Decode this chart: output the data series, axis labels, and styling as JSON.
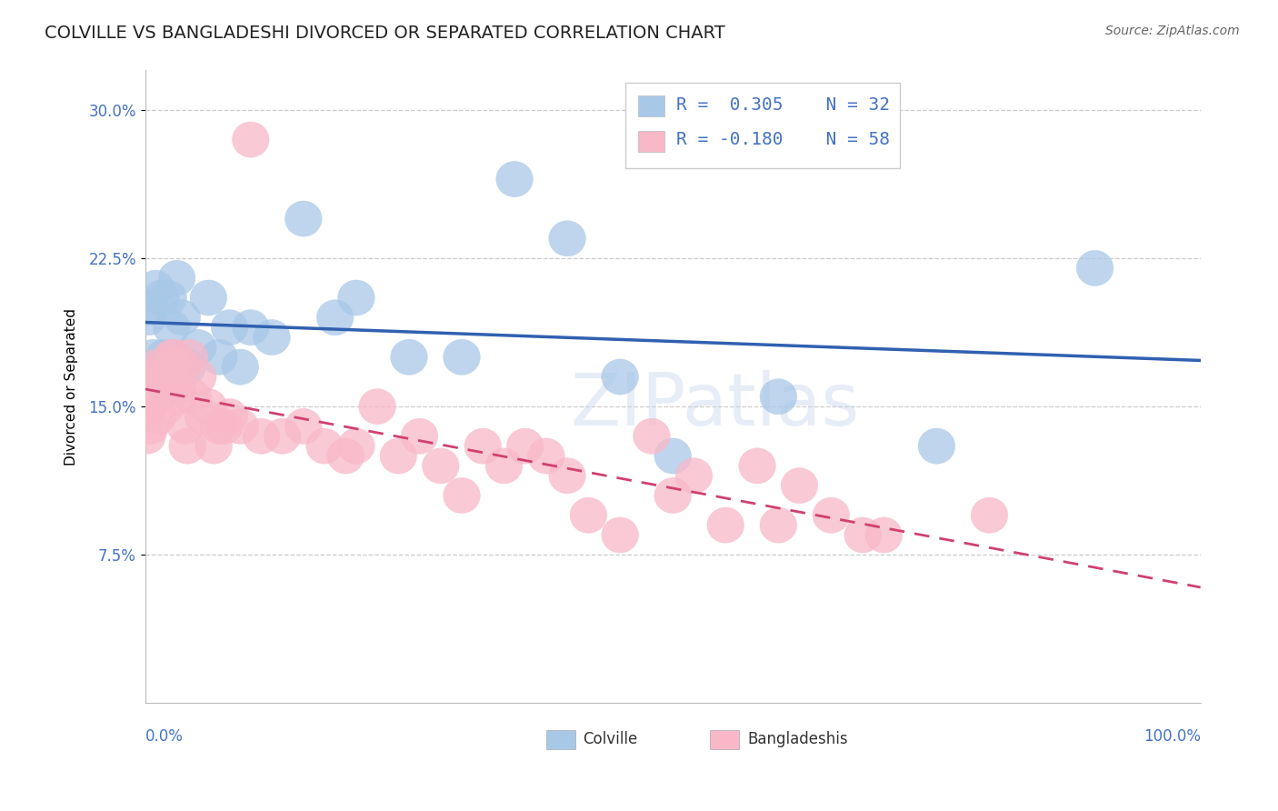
{
  "title": "COLVILLE VS BANGLADESHI DIVORCED OR SEPARATED CORRELATION CHART",
  "source": "Source: ZipAtlas.com",
  "ylabel": "Divorced or Separated",
  "watermark": "ZIPatlas",
  "colville_R": 0.305,
  "colville_N": 32,
  "bangladeshi_R": -0.18,
  "bangladeshi_N": 58,
  "colville_color": "#a8c8e8",
  "bangladeshi_color": "#f8b8c8",
  "colville_line_color": "#3060b0",
  "bangladeshi_line_color": "#d04070",
  "legend_text_color": "#4472c4",
  "colville_x": [
    0.3,
    0.5,
    0.8,
    1.0,
    1.5,
    1.8,
    2.0,
    2.2,
    2.5,
    2.8,
    3.0,
    3.5,
    4.0,
    5.0,
    6.0,
    7.0,
    8.0,
    9.0,
    10.0,
    12.0,
    15.0,
    18.0,
    20.0,
    25.0,
    30.0,
    35.0,
    40.0,
    45.0,
    50.0,
    60.0,
    75.0,
    90.0
  ],
  "colville_y": [
    19.5,
    20.0,
    17.5,
    21.0,
    20.5,
    17.5,
    16.0,
    20.5,
    19.0,
    17.0,
    21.5,
    19.5,
    17.0,
    18.0,
    20.5,
    17.5,
    19.0,
    17.0,
    19.0,
    18.5,
    24.5,
    19.5,
    20.5,
    17.5,
    17.5,
    26.5,
    23.5,
    16.5,
    12.5,
    15.5,
    13.0,
    22.0
  ],
  "bangladeshi_x": [
    0.2,
    0.3,
    0.5,
    0.7,
    0.8,
    1.0,
    1.2,
    1.5,
    1.8,
    2.0,
    2.2,
    2.5,
    2.8,
    3.0,
    3.2,
    3.5,
    3.8,
    4.0,
    4.2,
    4.5,
    5.0,
    5.5,
    6.0,
    6.5,
    7.0,
    7.5,
    8.0,
    9.0,
    10.0,
    11.0,
    13.0,
    15.0,
    17.0,
    19.0,
    20.0,
    22.0,
    24.0,
    26.0,
    28.0,
    30.0,
    32.0,
    34.0,
    36.0,
    38.0,
    40.0,
    42.0,
    45.0,
    48.0,
    50.0,
    52.0,
    55.0,
    58.0,
    60.0,
    62.0,
    65.0,
    68.0,
    70.0,
    80.0
  ],
  "bangladeshi_y": [
    13.5,
    15.0,
    14.0,
    15.5,
    16.5,
    17.0,
    14.5,
    16.5,
    17.0,
    15.0,
    16.5,
    17.5,
    17.5,
    16.0,
    15.5,
    17.0,
    14.0,
    13.0,
    17.5,
    15.5,
    16.5,
    14.5,
    15.0,
    13.0,
    14.0,
    14.0,
    14.5,
    14.0,
    28.5,
    13.5,
    13.5,
    14.0,
    13.0,
    12.5,
    13.0,
    15.0,
    12.5,
    13.5,
    12.0,
    10.5,
    13.0,
    12.0,
    13.0,
    12.5,
    11.5,
    9.5,
    8.5,
    13.5,
    10.5,
    11.5,
    9.0,
    12.0,
    9.0,
    11.0,
    9.5,
    8.5,
    8.5,
    9.5
  ],
  "xlim": [
    0,
    100
  ],
  "ylim": [
    0,
    32
  ],
  "yticks": [
    7.5,
    15.0,
    22.5,
    30.0
  ],
  "background_color": "#ffffff",
  "grid_color": "#cccccc",
  "title_fontsize": 14,
  "axis_label_fontsize": 11,
  "tick_fontsize": 12,
  "legend_fontsize": 14
}
